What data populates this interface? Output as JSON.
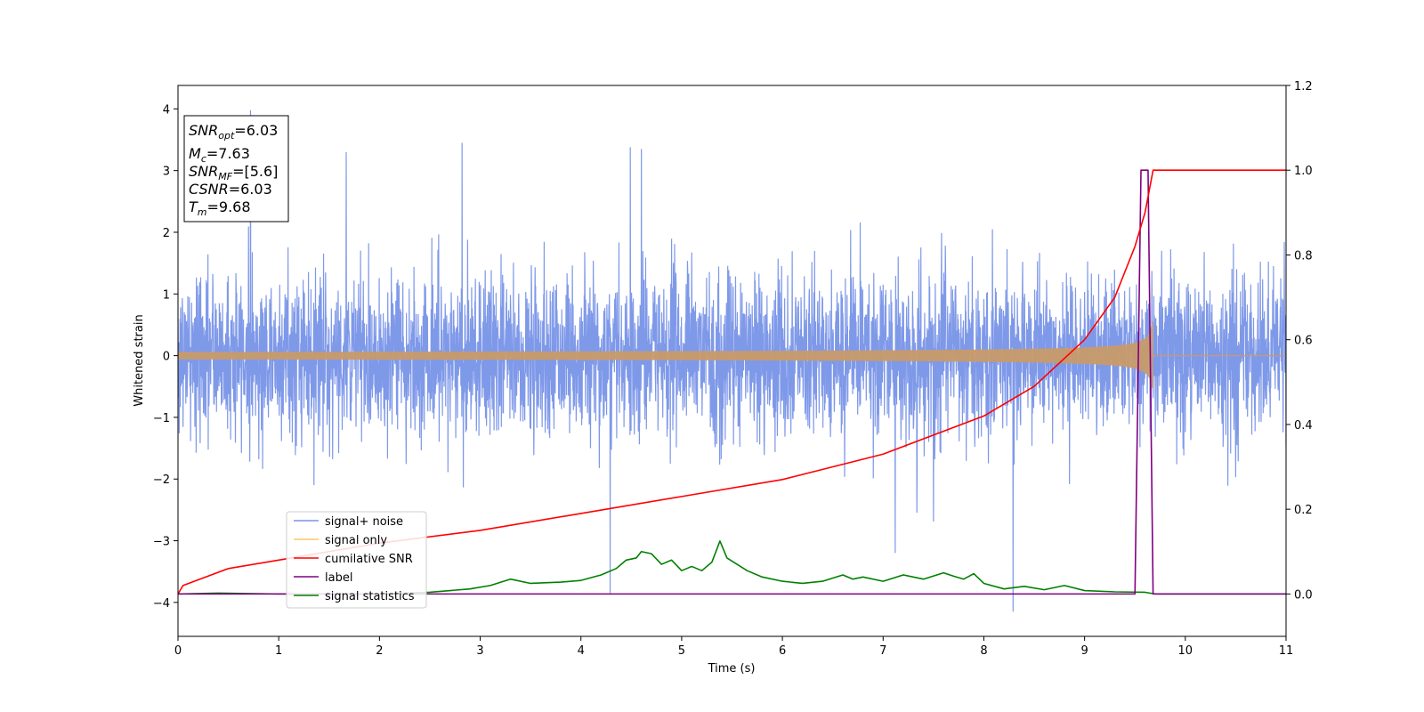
{
  "chart_data": {
    "type": "line",
    "xlabel": "Time (s)",
    "ylabel": "Whitened strain",
    "xlim": [
      0,
      11
    ],
    "ylim_left": [
      -4.55,
      4.38
    ],
    "ylim_right": [
      -0.1,
      1.2
    ],
    "x_ticks": [
      0,
      1,
      2,
      3,
      4,
      5,
      6,
      7,
      8,
      9,
      10,
      11
    ],
    "y_ticks_left": [
      -4,
      -3,
      -2,
      -1,
      0,
      1,
      2,
      3,
      4
    ],
    "y_ticks_right": [
      0.0,
      0.2,
      0.4,
      0.6,
      0.8,
      1.0,
      1.2
    ],
    "grid": false,
    "legend_position": "lower-left",
    "annotation": {
      "snr_opt": {
        "main": "SNR",
        "sub": "opt",
        "value": "=6.03"
      },
      "mc": {
        "main": "M",
        "sub": "c",
        "value": "=7.63"
      },
      "snr_mf": {
        "main": "SNR",
        "sub": "MF",
        "value": "=[5.6]"
      },
      "csnr": {
        "main": "CSNR",
        "sub": "",
        "value": "=6.03"
      },
      "tm": {
        "main": "T",
        "sub": "m",
        "value": "=9.68"
      }
    },
    "series": [
      {
        "name": "signal+ noise",
        "axis": "left",
        "color": "#7893e8",
        "noise_sigma": 0.65,
        "peaks": [
          [
            0.72,
            3.98
          ],
          [
            2.82,
            3.45
          ],
          [
            4.49,
            3.38
          ],
          [
            1.67,
            3.3
          ],
          [
            4.6,
            3.35
          ],
          [
            8.29,
            -4.15
          ],
          [
            4.29,
            -3.85
          ],
          [
            7.12,
            -3.2
          ],
          [
            1.35,
            -2.1
          ]
        ]
      },
      {
        "name": "signal only",
        "axis": "left",
        "color": "#c89a6a",
        "merger_time": 9.68,
        "peak_amplitude": 0.6
      },
      {
        "name": "cumilative SNR",
        "axis": "right",
        "color": "#ff0000",
        "x": [
          0,
          0.05,
          0.5,
          1,
          2,
          3,
          4,
          5,
          6,
          7,
          8,
          8.5,
          9,
          9.3,
          9.5,
          9.6,
          9.68,
          11
        ],
        "y": [
          0.0,
          0.02,
          0.06,
          0.08,
          0.12,
          0.15,
          0.19,
          0.23,
          0.27,
          0.33,
          0.42,
          0.49,
          0.6,
          0.7,
          0.82,
          0.9,
          1.0,
          1.0
        ]
      },
      {
        "name": "label",
        "axis": "right",
        "color": "#800080",
        "x": [
          0,
          9.5,
          9.56,
          9.63,
          9.68,
          11
        ],
        "y": [
          0,
          0,
          1,
          1,
          0,
          0
        ]
      },
      {
        "name": "signal statistics",
        "axis": "right",
        "color": "#008000",
        "x": [
          0,
          0.4,
          1,
          2,
          2.5,
          2.9,
          3.1,
          3.3,
          3.5,
          3.8,
          4.0,
          4.2,
          4.35,
          4.45,
          4.55,
          4.6,
          4.7,
          4.8,
          4.9,
          5.0,
          5.1,
          5.2,
          5.3,
          5.38,
          5.45,
          5.55,
          5.65,
          5.8,
          6.0,
          6.2,
          6.4,
          6.6,
          6.7,
          6.8,
          7.0,
          7.2,
          7.4,
          7.6,
          7.7,
          7.8,
          7.9,
          8.0,
          8.2,
          8.4,
          8.6,
          8.8,
          9.0,
          9.3,
          9.6,
          9.7,
          10,
          11
        ],
        "y": [
          0.0,
          0.002,
          0.0,
          0.0,
          0.004,
          0.012,
          0.02,
          0.035,
          0.025,
          0.028,
          0.032,
          0.045,
          0.06,
          0.08,
          0.085,
          0.1,
          0.095,
          0.07,
          0.08,
          0.055,
          0.065,
          0.055,
          0.075,
          0.125,
          0.085,
          0.07,
          0.055,
          0.04,
          0.03,
          0.025,
          0.03,
          0.045,
          0.035,
          0.04,
          0.03,
          0.045,
          0.035,
          0.05,
          0.042,
          0.035,
          0.048,
          0.025,
          0.012,
          0.018,
          0.01,
          0.02,
          0.008,
          0.005,
          0.004,
          0.0,
          0.0,
          0.0
        ]
      }
    ]
  }
}
